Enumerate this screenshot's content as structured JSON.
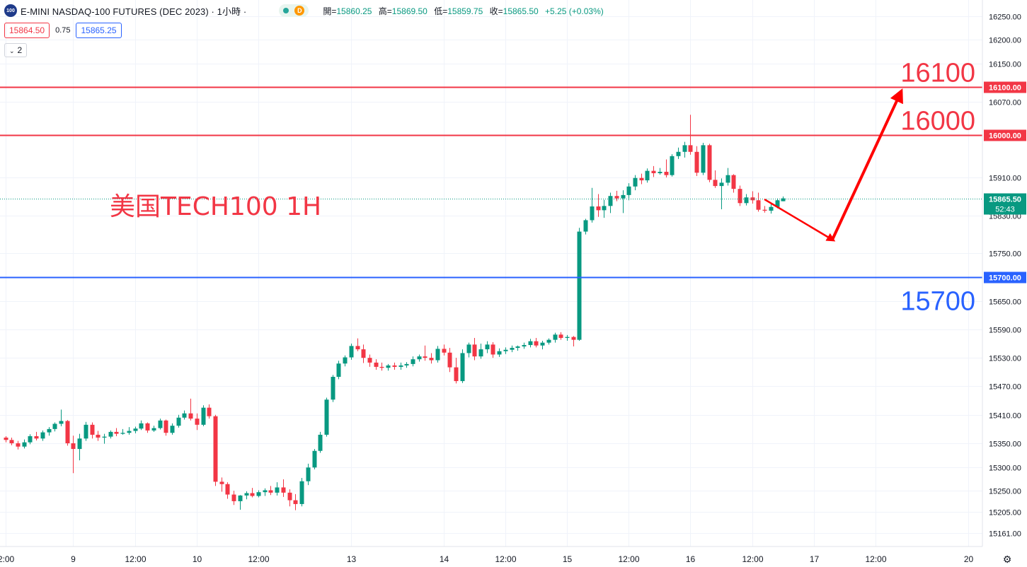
{
  "header": {
    "symbol_badge": "100",
    "title": "E-MINI NASDAQ-100 FUTURES (DEC 2023) · 1小時 ·",
    "d_badge": "D",
    "ohlc": [
      {
        "label": "開=",
        "value": "15860.25"
      },
      {
        "label": "高=",
        "value": "15869.50"
      },
      {
        "label": "低=",
        "value": "15859.75"
      },
      {
        "label": "收=",
        "value": "15865.50"
      }
    ],
    "change": "+5.25 (+0.03%)"
  },
  "price_row": {
    "bid": "15864.50",
    "spread": "0.75",
    "ask": "15865.25"
  },
  "indicator_toggle": {
    "chevron": "⌄",
    "count": "2"
  },
  "colors": {
    "up": "#089981",
    "down": "#f23645",
    "red_line": "#f23645",
    "blue_line": "#2962ff",
    "red_annotation": "#f23645",
    "blue_annotation": "#2962ff",
    "arrow": "#ff0000"
  },
  "chart_data": {
    "type": "candlestick",
    "timeframe": "1H",
    "ylim": [
      15140,
      16272
    ],
    "y_ticks": [
      "16250.00",
      "16200.00",
      "16150.00",
      "16070.00",
      "15910.00",
      "15830.00",
      "15750.00",
      "15650.00",
      "15590.00",
      "15530.00",
      "15470.00",
      "15410.00",
      "15350.00",
      "15300.00",
      "15250.00",
      "15205.00",
      "15161.00"
    ],
    "x_ticks": [
      {
        "label": "2:00",
        "bar": 0
      },
      {
        "label": "9",
        "bar": 11
      },
      {
        "label": "12:00",
        "bar": 21
      },
      {
        "label": "10",
        "bar": 31
      },
      {
        "label": "12:00",
        "bar": 41
      },
      {
        "label": "13",
        "bar": 56
      },
      {
        "label": "14",
        "bar": 71
      },
      {
        "label": "12:00",
        "bar": 81
      },
      {
        "label": "15",
        "bar": 91
      },
      {
        "label": "12:00",
        "bar": 101
      },
      {
        "label": "16",
        "bar": 111
      },
      {
        "label": "12:00",
        "bar": 121
      },
      {
        "label": "17",
        "bar": 131
      },
      {
        "label": "12:00",
        "bar": 141
      },
      {
        "label": "20",
        "bar": 156
      }
    ],
    "bars": [
      [
        15362,
        15365,
        15352,
        15357
      ],
      [
        15357,
        15362,
        15346,
        15350
      ],
      [
        15350,
        15355,
        15337,
        15343
      ],
      [
        15343,
        15358,
        15339,
        15352
      ],
      [
        15352,
        15369,
        15348,
        15365
      ],
      [
        15365,
        15374,
        15356,
        15360
      ],
      [
        15360,
        15377,
        15355,
        15373
      ],
      [
        15373,
        15384,
        15366,
        15380
      ],
      [
        15380,
        15394,
        15375,
        15391
      ],
      [
        15391,
        15421,
        15386,
        15397
      ],
      [
        15397,
        15399,
        15345,
        15350
      ],
      [
        15350,
        15366,
        15287,
        15338
      ],
      [
        15338,
        15370,
        15314,
        15360
      ],
      [
        15360,
        15395,
        15355,
        15389
      ],
      [
        15389,
        15394,
        15360,
        15368
      ],
      [
        15368,
        15376,
        15355,
        15362
      ],
      [
        15362,
        15370,
        15349,
        15364
      ],
      [
        15364,
        15377,
        15360,
        15374
      ],
      [
        15374,
        15382,
        15365,
        15370
      ],
      [
        15370,
        15380,
        15368,
        15372
      ],
      [
        15372,
        15384,
        15368,
        15376
      ],
      [
        15376,
        15385,
        15371,
        15381
      ],
      [
        15381,
        15398,
        15378,
        15392
      ],
      [
        15392,
        15394,
        15372,
        15377
      ],
      [
        15377,
        15387,
        15374,
        15382
      ],
      [
        15382,
        15402,
        15379,
        15398
      ],
      [
        15398,
        15400,
        15366,
        15372
      ],
      [
        15372,
        15392,
        15368,
        15387
      ],
      [
        15387,
        15410,
        15383,
        15404
      ],
      [
        15404,
        15419,
        15400,
        15413
      ],
      [
        15413,
        15444,
        15398,
        15402
      ],
      [
        15402,
        15413,
        15378,
        15389
      ],
      [
        15389,
        15430,
        15386,
        15425
      ],
      [
        15425,
        15432,
        15402,
        15407
      ],
      [
        15407,
        15410,
        15260,
        15269
      ],
      [
        15269,
        15278,
        15248,
        15264
      ],
      [
        15264,
        15268,
        15233,
        15242
      ],
      [
        15242,
        15250,
        15220,
        15228
      ],
      [
        15228,
        15241,
        15210,
        15240
      ],
      [
        15240,
        15249,
        15232,
        15245
      ],
      [
        15245,
        15256,
        15236,
        15239
      ],
      [
        15239,
        15251,
        15236,
        15247
      ],
      [
        15247,
        15255,
        15239,
        15251
      ],
      [
        15251,
        15260,
        15241,
        15246
      ],
      [
        15246,
        15268,
        15240,
        15257
      ],
      [
        15257,
        15274,
        15237,
        15246
      ],
      [
        15246,
        15253,
        15217,
        15230
      ],
      [
        15230,
        15243,
        15209,
        15222
      ],
      [
        15222,
        15277,
        15217,
        15270
      ],
      [
        15270,
        15307,
        15262,
        15299
      ],
      [
        15299,
        15338,
        15295,
        15334
      ],
      [
        15334,
        15374,
        15330,
        15368
      ],
      [
        15368,
        15446,
        15364,
        15442
      ],
      [
        15442,
        15494,
        15437,
        15490
      ],
      [
        15490,
        15524,
        15485,
        15518
      ],
      [
        15518,
        15535,
        15512,
        15531
      ],
      [
        15531,
        15560,
        15526,
        15555
      ],
      [
        15555,
        15571,
        15544,
        15548
      ],
      [
        15548,
        15558,
        15519,
        15530
      ],
      [
        15530,
        15537,
        15511,
        15520
      ],
      [
        15520,
        15527,
        15505,
        15511
      ],
      [
        15511,
        15520,
        15503,
        15509
      ],
      [
        15509,
        15517,
        15503,
        15514
      ],
      [
        15514,
        15520,
        15505,
        15511
      ],
      [
        15511,
        15520,
        15505,
        15514
      ],
      [
        15514,
        15521,
        15509,
        15517
      ],
      [
        15517,
        15533,
        15512,
        15527
      ],
      [
        15527,
        15537,
        15522,
        15533
      ],
      [
        15533,
        15556,
        15524,
        15530
      ],
      [
        15530,
        15540,
        15518,
        15525
      ],
      [
        15525,
        15555,
        15520,
        15549
      ],
      [
        15549,
        15558,
        15535,
        15541
      ],
      [
        15541,
        15551,
        15500,
        15510
      ],
      [
        15510,
        15530,
        15476,
        15481
      ],
      [
        15481,
        15548,
        15477,
        15540
      ],
      [
        15540,
        15562,
        15531,
        15558
      ],
      [
        15558,
        15572,
        15525,
        15533
      ],
      [
        15533,
        15560,
        15528,
        15548
      ],
      [
        15548,
        15565,
        15540,
        15558
      ],
      [
        15558,
        15563,
        15530,
        15537
      ],
      [
        15537,
        15550,
        15532,
        15544
      ],
      [
        15544,
        15552,
        15538,
        15547
      ],
      [
        15547,
        15556,
        15542,
        15551
      ],
      [
        15551,
        15556,
        15545,
        15554
      ],
      [
        15554,
        15562,
        15549,
        15557
      ],
      [
        15557,
        15570,
        15552,
        15565
      ],
      [
        15565,
        15572,
        15552,
        15556
      ],
      [
        15556,
        15566,
        15548,
        15562
      ],
      [
        15562,
        15571,
        15558,
        15568
      ],
      [
        15568,
        15583,
        15562,
        15579
      ],
      [
        15579,
        15584,
        15568,
        15572
      ],
      [
        15572,
        15578,
        15566,
        15574
      ],
      [
        15574,
        15576,
        15554,
        15568
      ],
      [
        15568,
        15804,
        15566,
        15796
      ],
      [
        15796,
        15823,
        15790,
        15820
      ],
      [
        15820,
        15888,
        15815,
        15849
      ],
      [
        15849,
        15875,
        15827,
        15841
      ],
      [
        15841,
        15863,
        15825,
        15850
      ],
      [
        15850,
        15878,
        15835,
        15871
      ],
      [
        15871,
        15882,
        15860,
        15866
      ],
      [
        15866,
        15883,
        15835,
        15873
      ],
      [
        15873,
        15898,
        15862,
        15891
      ],
      [
        15891,
        15915,
        15883,
        15909
      ],
      [
        15909,
        15918,
        15896,
        15904
      ],
      [
        15904,
        15929,
        15899,
        15924
      ],
      [
        15924,
        15934,
        15911,
        15919
      ],
      [
        15919,
        15930,
        15916,
        15922
      ],
      [
        15922,
        15948,
        15910,
        15915
      ],
      [
        15915,
        15959,
        15912,
        15955
      ],
      [
        15955,
        15973,
        15949,
        15964
      ],
      [
        15964,
        15985,
        15952,
        15978
      ],
      [
        15978,
        16042,
        15958,
        15964
      ],
      [
        15964,
        15976,
        15913,
        15920
      ],
      [
        15920,
        15983,
        15915,
        15978
      ],
      [
        15978,
        15981,
        15900,
        15905
      ],
      [
        15905,
        15925,
        15888,
        15892
      ],
      [
        15892,
        15908,
        15843,
        15899
      ],
      [
        15899,
        15930,
        15893,
        15915
      ],
      [
        15915,
        15917,
        15878,
        15886
      ],
      [
        15886,
        15893,
        15850,
        15856
      ],
      [
        15856,
        15875,
        15851,
        15868
      ],
      [
        15868,
        15881,
        15855,
        15862
      ],
      [
        15862,
        15878,
        15838,
        15842
      ],
      [
        15842,
        15850,
        15836,
        15840
      ],
      [
        15840,
        15855,
        15834,
        15848
      ],
      [
        15848,
        15866,
        15845,
        15862
      ],
      [
        15860,
        15870,
        15860,
        15866
      ]
    ],
    "horizontal_lines": [
      {
        "price": 16100,
        "label": "16100",
        "tag": "16100.00",
        "color": "#f23645"
      },
      {
        "price": 16000,
        "label": "16000",
        "tag": "16000.00",
        "color": "#f23645"
      },
      {
        "price": 15700,
        "label": "15700",
        "tag": "15700.00",
        "color": "#2962ff"
      }
    ],
    "current_price": {
      "value": 15865.5,
      "tag": "15865.50",
      "countdown": "52:43"
    },
    "annotation_text": "美国TECH100 1H",
    "projection_path": [
      {
        "bar": 123,
        "price": 15864
      },
      {
        "bar": 134,
        "price": 15779
      },
      {
        "bar": 145,
        "price": 16087
      }
    ]
  }
}
